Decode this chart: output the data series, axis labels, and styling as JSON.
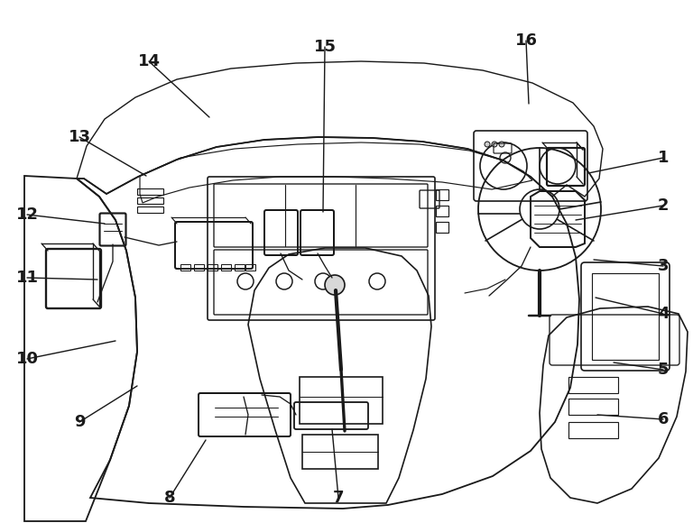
{
  "bg": "#ffffff",
  "lc": "#1a1a1a",
  "lw": 1.2,
  "labels_data": [
    [
      "1",
      735,
      175,
      652,
      192
    ],
    [
      "2",
      735,
      228,
      638,
      244
    ],
    [
      "3",
      735,
      295,
      658,
      288
    ],
    [
      "4",
      735,
      348,
      660,
      330
    ],
    [
      "5",
      735,
      410,
      680,
      402
    ],
    [
      "6",
      735,
      465,
      662,
      460
    ],
    [
      "7",
      375,
      552,
      368,
      476
    ],
    [
      "8",
      188,
      552,
      228,
      488
    ],
    [
      "9",
      88,
      468,
      152,
      428
    ],
    [
      "10",
      30,
      398,
      128,
      378
    ],
    [
      "11",
      30,
      308,
      108,
      310
    ],
    [
      "12",
      30,
      238,
      116,
      248
    ],
    [
      "13",
      88,
      152,
      162,
      195
    ],
    [
      "14",
      165,
      68,
      232,
      130
    ],
    [
      "15",
      360,
      52,
      358,
      235
    ],
    [
      "16",
      583,
      45,
      586,
      115
    ]
  ]
}
